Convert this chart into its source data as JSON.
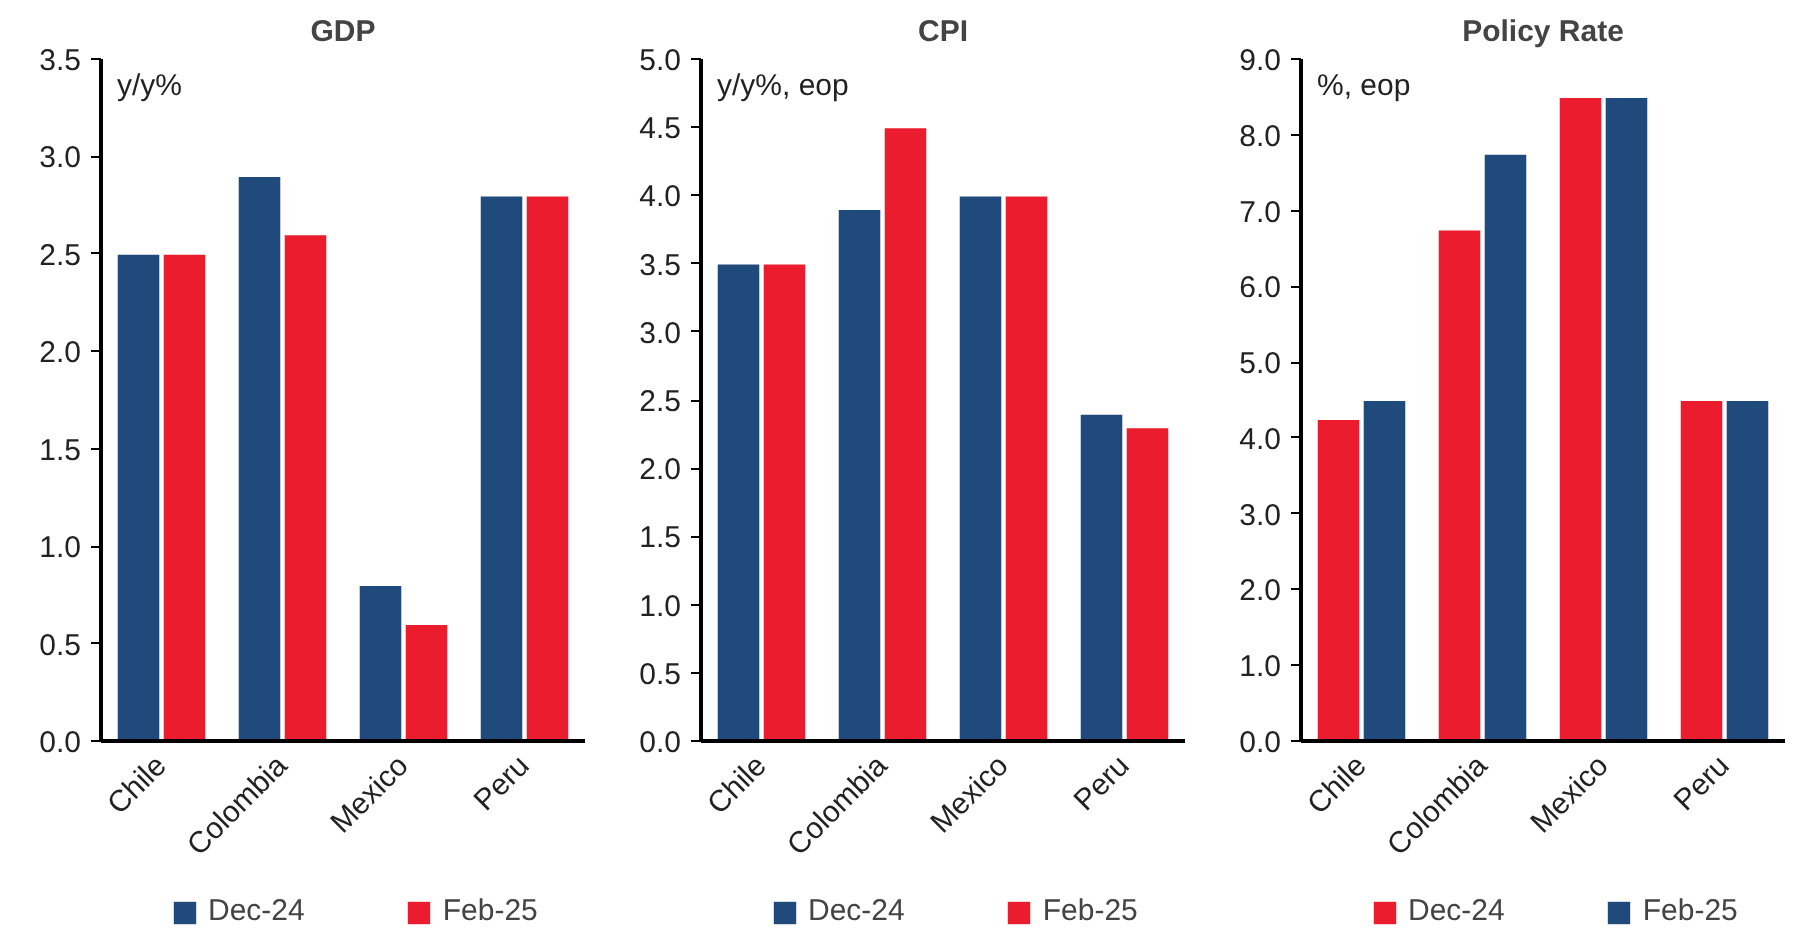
{
  "chart_data": [
    {
      "type": "bar",
      "title": "GDP",
      "ylabel": "y/y%",
      "categories": [
        "Chile",
        "Colombia",
        "Mexico",
        "Peru"
      ],
      "series": [
        {
          "name": "Dec-24",
          "color": "#214a7c",
          "values": [
            2.5,
            2.9,
            0.8,
            2.8
          ]
        },
        {
          "name": "Feb-25",
          "color": "#ea1c2e",
          "values": [
            2.5,
            2.6,
            0.6,
            2.8
          ]
        }
      ],
      "ylim": [
        0,
        3.5
      ],
      "yticks": [
        {
          "value": 0,
          "label": "0.0"
        },
        {
          "value": 0.5,
          "label": "0.5"
        },
        {
          "value": 1,
          "label": "1.0"
        },
        {
          "value": 1.5,
          "label": "1.5"
        },
        {
          "value": 2,
          "label": "2.0"
        },
        {
          "value": 2.5,
          "label": "2.5"
        },
        {
          "value": 3,
          "label": "3.0"
        },
        {
          "value": 3.5,
          "label": "3.5"
        }
      ],
      "grid": false,
      "legend": "bottom"
    },
    {
      "type": "bar",
      "title": "CPI",
      "ylabel": "y/y%, eop",
      "categories": [
        "Chile",
        "Colombia",
        "Mexico",
        "Peru"
      ],
      "series": [
        {
          "name": "Dec-24",
          "color": "#214a7c",
          "values": [
            3.5,
            3.9,
            4.0,
            2.4
          ]
        },
        {
          "name": "Feb-25",
          "color": "#ea1c2e",
          "values": [
            3.5,
            4.5,
            4.0,
            2.3
          ]
        }
      ],
      "ylim": [
        0,
        5
      ],
      "yticks": [
        {
          "value": 0,
          "label": "0.0"
        },
        {
          "value": 0.5,
          "label": "0.5"
        },
        {
          "value": 1,
          "label": "1.0"
        },
        {
          "value": 1.5,
          "label": "1.5"
        },
        {
          "value": 2,
          "label": "2.0"
        },
        {
          "value": 2.5,
          "label": "2.5"
        },
        {
          "value": 3,
          "label": "3.0"
        },
        {
          "value": 3.5,
          "label": "3.5"
        },
        {
          "value": 4,
          "label": "4.0"
        },
        {
          "value": 4.5,
          "label": "4.5"
        },
        {
          "value": 5,
          "label": "5.0"
        }
      ],
      "grid": false,
      "legend": "bottom"
    },
    {
      "type": "bar",
      "title": "Policy Rate",
      "ylabel": "%, eop",
      "categories": [
        "Chile",
        "Colombia",
        "Mexico",
        "Peru"
      ],
      "series": [
        {
          "name": "Dec-24",
          "color": "#ea1c2e",
          "values": [
            4.25,
            6.75,
            8.5,
            4.5
          ]
        },
        {
          "name": "Feb-25",
          "color": "#214a7c",
          "values": [
            4.5,
            7.75,
            8.5,
            4.5
          ]
        }
      ],
      "ylim": [
        0,
        9
      ],
      "yticks": [
        {
          "value": 0,
          "label": "0.0"
        },
        {
          "value": 1,
          "label": "1.0"
        },
        {
          "value": 2,
          "label": "2.0"
        },
        {
          "value": 3,
          "label": "3.0"
        },
        {
          "value": 4,
          "label": "4.0"
        },
        {
          "value": 5,
          "label": "5.0"
        },
        {
          "value": 6,
          "label": "6.0"
        },
        {
          "value": 7,
          "label": "7.0"
        },
        {
          "value": 8,
          "label": "8.0"
        },
        {
          "value": 9,
          "label": "9.0"
        }
      ],
      "grid": false,
      "legend": "bottom"
    }
  ]
}
